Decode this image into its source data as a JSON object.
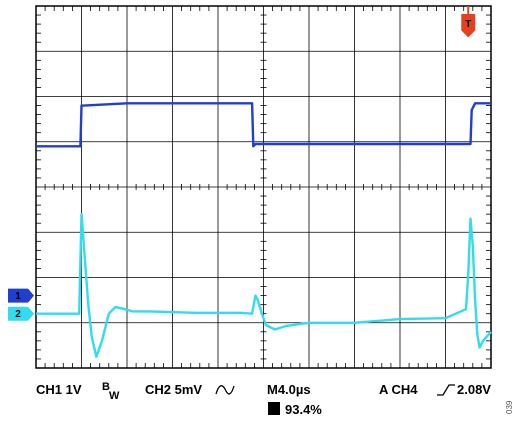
{
  "chart_data": {
    "type": "line",
    "title": "",
    "xlabel": "",
    "ylabel": "",
    "grid": true,
    "x_divisions": 10,
    "y_divisions": 8,
    "time_unit": "µs",
    "timebase_us_per_div": 4.0,
    "x_range_us": [
      0,
      40
    ],
    "series": [
      {
        "name": "1",
        "scale": "1V",
        "units": "divisions",
        "ground_marker_div": 1.6,
        "color": "#1f3fd1",
        "x": [
          0,
          3.9,
          4.0,
          4.2,
          8.0,
          19.0,
          19.1,
          19.3,
          19.6,
          38.2,
          38.3,
          38.6,
          40.0
        ],
        "y": [
          4.9,
          4.9,
          5.8,
          5.8,
          5.85,
          5.85,
          4.9,
          4.95,
          4.95,
          4.95,
          5.7,
          5.85,
          5.85
        ]
      },
      {
        "name": "2",
        "scale": "5mV",
        "units": "divisions",
        "ground_marker_div": 1.2,
        "color": "#33dbee",
        "x": [
          0,
          3.8,
          4.0,
          4.1,
          4.3,
          4.6,
          4.9,
          5.3,
          5.8,
          6.4,
          7.0,
          7.8,
          8.5,
          10,
          14,
          18,
          19.0,
          19.3,
          19.5,
          19.8,
          20.2,
          21.0,
          22.0,
          24,
          28,
          32,
          36,
          37.8,
          38.0,
          38.2,
          38.4,
          38.6,
          38.8,
          39.0,
          39.3,
          40.0
        ],
        "y": [
          1.2,
          1.2,
          3.4,
          3.1,
          2.4,
          1.4,
          0.7,
          0.25,
          0.6,
          1.2,
          1.35,
          1.3,
          1.25,
          1.25,
          1.22,
          1.22,
          1.2,
          1.6,
          1.5,
          1.25,
          0.95,
          0.85,
          0.93,
          1.0,
          1.0,
          1.08,
          1.1,
          1.3,
          2.1,
          3.3,
          2.7,
          1.5,
          0.75,
          0.45,
          0.6,
          0.8
        ]
      }
    ],
    "trigger_marker": "T",
    "trigger_position_div": 9.5
  },
  "ui": {
    "ch1_marker": "1",
    "ch2_marker": "2",
    "trigger_marker": "T",
    "ch1_label": "CH1  1V",
    "bw_b": "B",
    "bw_w": "W",
    "ch2_label": "CH2  5mV",
    "timebase": "M4.0µs",
    "trigger_label": "A  CH4",
    "trigger_level": "2.08V",
    "trigger_pos_marker": "T",
    "trigger_pos": "93.4%",
    "figure_id": "039"
  },
  "colors": {
    "ch1": "#1f3fd1",
    "ch2": "#33dbee",
    "marker_ch1": "#1f3fd1",
    "marker_ch2": "#33dbee",
    "trigger": "#e8401c",
    "grid": "#000000"
  }
}
